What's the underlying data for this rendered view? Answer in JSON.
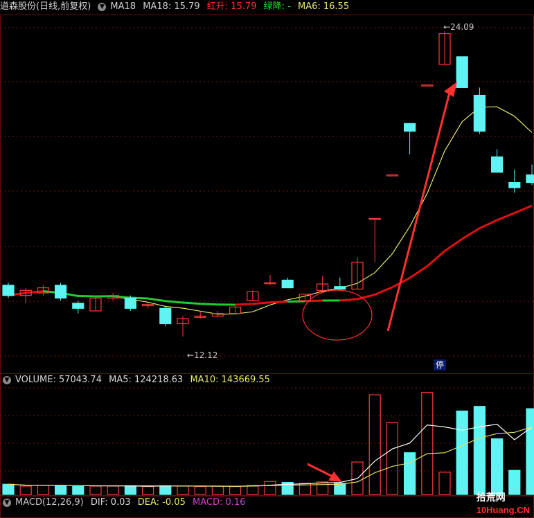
{
  "colors": {
    "up": "#ff3b3b",
    "down": "#5ff4f4",
    "ma_yellow": "#e8e86a",
    "ma_green": "#22cc33",
    "ma_red": "#e01010",
    "vol_ma5": "#ffffff",
    "vol_ma10": "#e0e060",
    "grid": "#7a1010",
    "annot": "#ff3030"
  },
  "price_panel": {
    "title": "道森股份(日线,前复权)",
    "ma18_label": "MA18",
    "ma18_value": "MA18: 15.79",
    "red_up": "红升: 15.79",
    "green_down": "绿降: -",
    "ma6": "MA6: 16.55",
    "high_label": "24.09",
    "low_label": "12.12",
    "halt_label": "停"
  },
  "volume_panel": {
    "volume": "VOLUME: 57043.74",
    "ma5": "MA5: 124218.63",
    "ma10": "MA10: 143669.55"
  },
  "macd_panel": {
    "macd_params": "MACD(12,26,9)",
    "dif": "DIF: 0.03",
    "dea": "DEA: -0.05",
    "macd": "MACD: 0.16"
  },
  "watermark": {
    "brand": "拾荒网",
    "domain": "10Huang.CN"
  },
  "chart_data": {
    "type": "candlestick",
    "price_range": [
      11.5,
      24.5
    ],
    "candles": [
      {
        "o": 14.2,
        "h": 14.3,
        "l": 13.7,
        "c": 13.8
      },
      {
        "o": 13.8,
        "h": 14.1,
        "l": 13.5,
        "c": 14.0
      },
      {
        "o": 13.9,
        "h": 14.2,
        "l": 13.8,
        "c": 14.1
      },
      {
        "o": 14.2,
        "h": 14.3,
        "l": 13.6,
        "c": 13.7
      },
      {
        "o": 13.5,
        "h": 13.6,
        "l": 13.1,
        "c": 13.3
      },
      {
        "o": 13.2,
        "h": 13.8,
        "l": 13.2,
        "c": 13.7
      },
      {
        "o": 13.7,
        "h": 13.9,
        "l": 13.6,
        "c": 13.8
      },
      {
        "o": 13.7,
        "h": 13.8,
        "l": 13.2,
        "c": 13.3
      },
      {
        "o": 13.4,
        "h": 13.5,
        "l": 13.3,
        "c": 13.45
      },
      {
        "o": 13.3,
        "h": 13.4,
        "l": 12.6,
        "c": 12.7
      },
      {
        "o": 12.7,
        "h": 13.0,
        "l": 12.2,
        "c": 12.9
      },
      {
        "o": 12.95,
        "h": 13.15,
        "l": 12.9,
        "c": 13.0
      },
      {
        "o": 13.0,
        "h": 13.2,
        "l": 12.95,
        "c": 13.1
      },
      {
        "o": 13.1,
        "h": 13.4,
        "l": 13.1,
        "c": 13.35
      },
      {
        "o": 13.6,
        "h": 14.0,
        "l": 13.6,
        "c": 13.95
      },
      {
        "o": 14.3,
        "h": 14.6,
        "l": 14.2,
        "c": 14.3
      },
      {
        "o": 14.4,
        "h": 14.5,
        "l": 14.1,
        "c": 14.1
      },
      {
        "o": 13.6,
        "h": 13.85,
        "l": 13.6,
        "c": 13.85
      },
      {
        "o": 14.0,
        "h": 14.55,
        "l": 14.0,
        "c": 14.25
      },
      {
        "o": 14.15,
        "h": 14.5,
        "l": 14.0,
        "c": 14.05
      },
      {
        "o": 14.05,
        "h": 15.3,
        "l": 14.05,
        "c": 15.1
      },
      {
        "o": 16.8,
        "h": 16.8,
        "l": 15.1,
        "c": 16.8
      },
      {
        "o": 18.5,
        "h": 18.5,
        "l": 18.5,
        "c": 18.5
      },
      {
        "o": 20.5,
        "h": 20.5,
        "l": 19.3,
        "c": 20.2
      },
      {
        "o": 22.0,
        "h": 22.0,
        "l": 22.0,
        "c": 22.0
      },
      {
        "o": 22.8,
        "h": 24.09,
        "l": 22.8,
        "c": 24.0
      },
      {
        "o": 23.1,
        "h": 23.1,
        "l": 21.9,
        "c": 21.9
      },
      {
        "o": 21.6,
        "h": 21.9,
        "l": 20.1,
        "c": 20.2
      },
      {
        "o": 19.2,
        "h": 19.5,
        "l": 18.6,
        "c": 18.6
      },
      {
        "o": 18.2,
        "h": 18.7,
        "l": 17.8,
        "c": 18.0
      },
      {
        "o": 18.5,
        "h": 18.9,
        "l": 18.1,
        "c": 18.2
      }
    ],
    "volume": [
      22,
      18,
      20,
      19,
      17,
      18,
      18,
      19,
      17,
      19,
      18,
      17,
      18,
      17,
      20,
      28,
      26,
      24,
      27,
      24,
      70,
      215,
      155,
      90,
      220,
      48,
      180,
      190,
      120,
      52,
      185
    ],
    "vol_range": [
      0,
      230
    ]
  }
}
